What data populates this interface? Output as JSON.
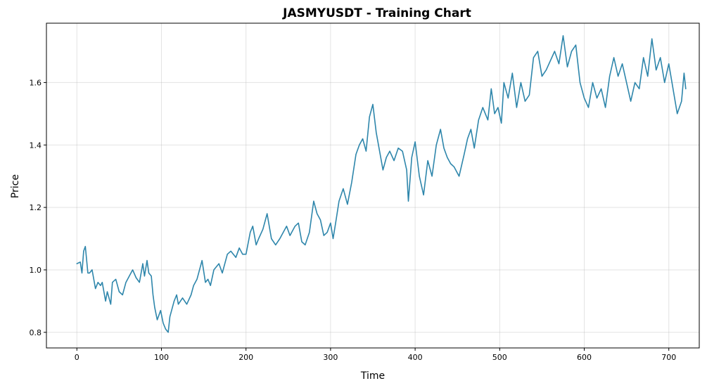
{
  "chart_data": {
    "type": "line",
    "title": "JASMYUSDT - Training Chart",
    "xlabel": "Time",
    "ylabel": "Price",
    "xlim": [
      -36,
      736
    ],
    "ylim": [
      0.75,
      1.79
    ],
    "xticks": [
      0,
      100,
      200,
      300,
      400,
      500,
      600,
      700
    ],
    "yticks": [
      0.8,
      1.0,
      1.2,
      1.4,
      1.6
    ],
    "ytick_labels": [
      "0.8",
      "1.0",
      "1.2",
      "1.4",
      "1.6"
    ],
    "grid": true,
    "line_color": "#2e86ab",
    "series": [
      {
        "x": [
          0,
          4,
          6,
          8,
          10,
          13,
          15,
          18,
          22,
          25,
          28,
          30,
          34,
          36,
          40,
          42,
          46,
          50,
          54,
          58,
          62,
          66,
          70,
          74,
          78,
          80,
          83,
          85,
          88,
          90,
          92,
          95,
          99,
          102,
          105,
          108,
          110,
          113,
          115,
          118,
          120,
          125,
          130,
          135,
          138,
          142,
          148,
          152,
          155,
          158,
          162,
          168,
          172,
          178,
          182,
          188,
          192,
          196,
          200,
          205,
          208,
          212,
          215,
          220,
          225,
          230,
          235,
          240,
          244,
          248,
          252,
          258,
          262,
          266,
          270,
          275,
          280,
          284,
          288,
          292,
          296,
          300,
          303,
          306,
          310,
          315,
          320,
          325,
          330,
          334,
          338,
          342,
          346,
          350,
          354,
          358,
          362,
          366,
          370,
          375,
          380,
          385,
          390,
          392,
          396,
          400,
          405,
          410,
          415,
          420,
          425,
          430,
          434,
          438,
          442,
          446,
          452,
          458,
          462,
          466,
          470,
          475,
          480,
          486,
          490,
          494,
          498,
          502,
          505,
          510,
          515,
          520,
          525,
          530,
          535,
          540,
          545,
          550,
          555,
          560,
          565,
          570,
          575,
          580,
          585,
          590,
          595,
          600,
          605,
          610,
          615,
          620,
          625,
          630,
          635,
          640,
          645,
          650,
          655,
          660,
          665,
          670,
          675,
          680,
          685,
          690,
          695,
          700,
          705,
          710,
          715,
          718,
          720
        ],
        "y": [
          1.02,
          1.025,
          0.99,
          1.06,
          1.075,
          0.99,
          0.99,
          1.0,
          0.94,
          0.96,
          0.95,
          0.96,
          0.9,
          0.93,
          0.89,
          0.96,
          0.97,
          0.93,
          0.92,
          0.96,
          0.98,
          1.0,
          0.975,
          0.96,
          1.02,
          0.98,
          1.03,
          0.99,
          0.98,
          0.92,
          0.88,
          0.84,
          0.87,
          0.83,
          0.81,
          0.8,
          0.85,
          0.88,
          0.9,
          0.92,
          0.89,
          0.91,
          0.89,
          0.92,
          0.95,
          0.97,
          1.03,
          0.96,
          0.97,
          0.95,
          1.0,
          1.02,
          0.99,
          1.05,
          1.06,
          1.04,
          1.07,
          1.05,
          1.05,
          1.12,
          1.14,
          1.08,
          1.1,
          1.13,
          1.18,
          1.1,
          1.08,
          1.1,
          1.12,
          1.14,
          1.11,
          1.14,
          1.15,
          1.09,
          1.08,
          1.12,
          1.22,
          1.18,
          1.16,
          1.11,
          1.12,
          1.15,
          1.1,
          1.15,
          1.22,
          1.26,
          1.21,
          1.28,
          1.37,
          1.4,
          1.42,
          1.38,
          1.49,
          1.53,
          1.44,
          1.38,
          1.32,
          1.36,
          1.38,
          1.35,
          1.39,
          1.38,
          1.32,
          1.22,
          1.36,
          1.41,
          1.3,
          1.24,
          1.35,
          1.3,
          1.4,
          1.45,
          1.39,
          1.36,
          1.34,
          1.33,
          1.3,
          1.37,
          1.42,
          1.45,
          1.39,
          1.48,
          1.52,
          1.48,
          1.58,
          1.5,
          1.52,
          1.47,
          1.6,
          1.55,
          1.63,
          1.52,
          1.6,
          1.54,
          1.56,
          1.68,
          1.7,
          1.62,
          1.64,
          1.67,
          1.7,
          1.66,
          1.75,
          1.65,
          1.7,
          1.72,
          1.6,
          1.55,
          1.52,
          1.6,
          1.55,
          1.58,
          1.52,
          1.62,
          1.68,
          1.62,
          1.66,
          1.6,
          1.54,
          1.6,
          1.58,
          1.68,
          1.62,
          1.74,
          1.64,
          1.68,
          1.6,
          1.66,
          1.58,
          1.5,
          1.54,
          1.63,
          1.58
        ]
      }
    ]
  }
}
